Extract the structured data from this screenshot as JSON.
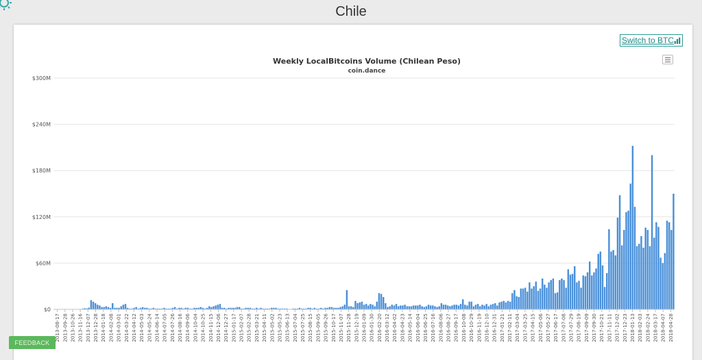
{
  "page": {
    "title": "Chile"
  },
  "toolbar": {
    "switch_label": "Switch to BTC",
    "switch_icon": "bar-chart-icon",
    "menu_icon": "hamburger-menu-icon"
  },
  "feedback": {
    "label": "FEEDBACK"
  },
  "colors": {
    "bar": "#4a90d9",
    "accent": "#1a8a8a",
    "feedback": "#5cb85c"
  },
  "chart_data": {
    "type": "bar",
    "title": "Weekly LocalBitcoins Volume (Chilean Peso)",
    "subtitle": "coin.dance",
    "xlabel": "",
    "ylabel": "",
    "ylim": [
      0,
      300000000
    ],
    "y_ticks": [
      0,
      60000000,
      120000000,
      180000000,
      240000000,
      300000000
    ],
    "y_tick_labels": [
      "$0",
      "$60M",
      "$120M",
      "$180M",
      "$240M",
      "$300M"
    ],
    "grid": true,
    "legend": "none",
    "x_tick_labels": [
      "2013-08-17",
      "2013-09-28",
      "2013-10-26",
      "2013-11-16",
      "2013-12-07",
      "2013-12-28",
      "2014-01-18",
      "2014-02-08",
      "2014-03-01",
      "2014-03-22",
      "2014-04-12",
      "2014-05-03",
      "2014-05-24",
      "2014-06-14",
      "2014-07-05",
      "2014-07-26",
      "2014-08-16",
      "2014-09-06",
      "2014-10-04",
      "2014-10-25",
      "2014-11-15",
      "2014-12-06",
      "2014-12-27",
      "2015-01-17",
      "2015-02-07",
      "2015-02-28",
      "2015-03-21",
      "2015-04-11",
      "2015-05-02",
      "2015-05-23",
      "2015-06-13",
      "2015-07-04",
      "2015-07-25",
      "2015-08-15",
      "2015-09-05",
      "2015-09-26",
      "2015-10-17",
      "2015-11-07",
      "2015-11-28",
      "2015-12-19",
      "2016-01-09",
      "2016-01-30",
      "2016-02-20",
      "2016-03-12",
      "2016-04-02",
      "2016-04-23",
      "2016-05-14",
      "2016-06-04",
      "2016-06-25",
      "2016-07-16",
      "2016-08-06",
      "2016-08-27",
      "2016-09-17",
      "2016-10-08",
      "2016-10-29",
      "2016-11-19",
      "2016-12-10",
      "2016-12-31",
      "2017-01-21",
      "2017-02-11",
      "2017-03-04",
      "2017-03-25",
      "2017-04-15",
      "2017-05-06",
      "2017-05-27",
      "2017-06-17",
      "2017-07-08",
      "2017-07-29",
      "2017-08-19",
      "2017-09-09",
      "2017-09-30",
      "2017-10-21",
      "2017-11-11",
      "2017-12-02",
      "2017-12-23",
      "2018-01-13",
      "2018-02-03",
      "2018-02-24",
      "2018-03-17",
      "2018-04-07",
      "2018-04-28"
    ],
    "values": [
      0.1,
      0,
      0.1,
      0.2,
      0,
      0.1,
      0.2,
      0.1,
      0.2,
      0.1,
      0.2,
      0.3,
      0.5,
      0.8,
      1.5,
      1.2,
      2.2,
      12,
      10,
      8,
      6,
      5,
      3,
      3,
      4,
      3,
      2,
      8,
      2,
      2,
      2,
      4,
      6,
      7,
      2,
      1,
      1,
      2,
      3,
      1,
      2,
      3,
      2,
      2,
      1,
      1,
      2,
      1,
      1,
      1,
      1,
      2,
      1,
      1,
      1,
      2,
      3,
      1,
      2,
      2,
      1,
      2,
      2,
      1,
      1,
      2,
      2,
      2,
      3,
      2,
      1,
      2,
      4,
      3,
      4,
      5,
      6,
      7,
      2,
      2,
      1,
      2,
      2,
      2,
      2,
      3,
      3,
      1,
      1,
      2,
      2,
      2,
      1,
      1,
      2,
      1,
      2,
      1,
      1,
      1,
      1,
      2,
      2,
      2,
      1,
      1,
      1,
      1,
      1,
      0,
      0,
      1,
      1,
      1,
      2,
      1,
      1,
      1,
      2,
      2,
      1,
      2,
      1,
      1,
      2,
      1,
      2,
      2,
      3,
      3,
      2,
      2,
      2,
      3,
      4,
      6,
      25,
      4,
      4,
      3,
      11,
      8,
      9,
      10,
      6,
      7,
      5,
      7,
      6,
      4,
      10,
      21,
      20,
      16,
      8,
      3,
      4,
      6,
      5,
      7,
      4,
      5,
      5,
      6,
      4,
      4,
      4,
      5,
      5,
      5,
      6,
      4,
      3,
      4,
      6,
      5,
      5,
      4,
      3,
      4,
      8,
      6,
      6,
      5,
      4,
      5,
      6,
      6,
      5,
      7,
      13,
      6,
      5,
      10,
      10,
      4,
      6,
      7,
      4,
      6,
      5,
      7,
      4,
      6,
      7,
      8,
      5,
      9,
      10,
      11,
      9,
      11,
      10,
      21,
      25,
      17,
      16,
      27,
      27,
      28,
      23,
      35,
      27,
      30,
      36,
      24,
      27,
      40,
      32,
      28,
      35,
      38,
      40,
      21,
      22,
      38,
      40,
      38,
      28,
      52,
      45,
      46,
      56,
      35,
      37,
      28,
      44,
      43,
      48,
      62,
      44,
      48,
      53,
      72,
      75,
      57,
      29,
      47,
      104,
      75,
      77,
      70,
      119,
      148,
      83,
      103,
      126,
      128,
      163,
      212,
      133,
      82,
      85,
      95,
      80,
      106,
      103,
      82,
      200,
      93,
      113,
      107,
      67,
      60,
      73,
      115,
      113,
      103,
      150
    ]
  }
}
